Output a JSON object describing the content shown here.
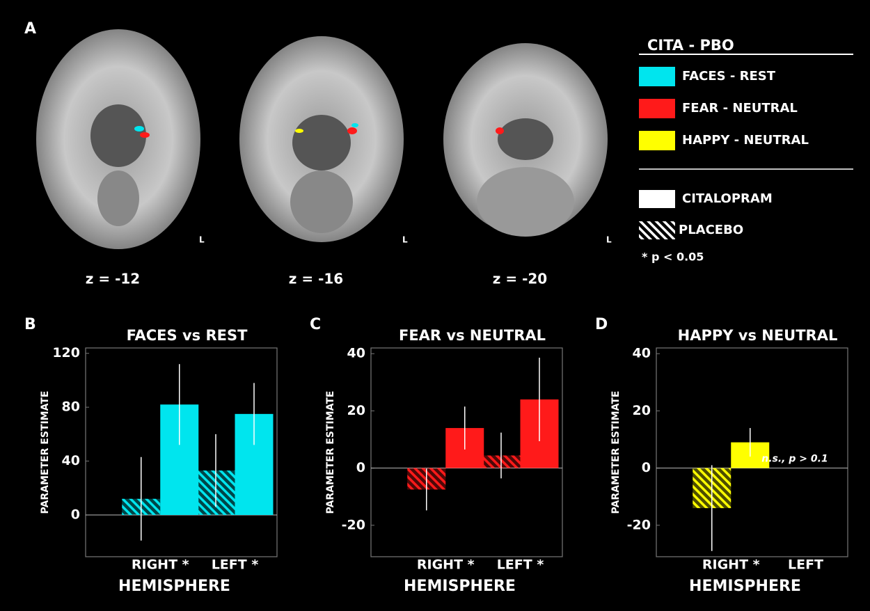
{
  "brain_panel": {
    "panel_label": "A",
    "slices": [
      {
        "z_label": "z = -12",
        "side_label": "L"
      },
      {
        "z_label": "z = -16",
        "side_label": "L"
      },
      {
        "z_label": "z = -20",
        "side_label": "L"
      }
    ]
  },
  "legend": {
    "title": "CITA - PBO",
    "contrasts": [
      {
        "label": "FACES - REST",
        "color": "#00e5ee"
      },
      {
        "label": "FEAR - NEUTRAL",
        "color": "#ff1a1a"
      },
      {
        "label": "HAPPY - NEUTRAL",
        "color": "#ffff00"
      }
    ],
    "conditions": [
      {
        "label": "CITALOPRAM",
        "pattern": "solid"
      },
      {
        "label": "PLACEBO",
        "pattern": "hatched"
      }
    ],
    "note": "* p < 0.05"
  },
  "chart_data": [
    {
      "type": "bar",
      "panel_label": "B",
      "title": "FACES vs REST",
      "x_label": "HEMISPHERE",
      "y_label": "PARAMETER ESTIMATE",
      "categories": [
        "RIGHT *",
        "LEFT *"
      ],
      "series": [
        {
          "pattern": "hatched",
          "color": "#00e5ee",
          "values": [
            12,
            33
          ],
          "errors": [
            31,
            27
          ]
        },
        {
          "pattern": "solid",
          "color": "#00e5ee",
          "values": [
            82,
            75
          ],
          "errors": [
            30,
            23
          ]
        }
      ],
      "ylim": [
        -31,
        124
      ],
      "yticks": [
        0,
        40,
        80,
        120
      ]
    },
    {
      "type": "bar",
      "panel_label": "C",
      "title": "FEAR vs NEUTRAL",
      "x_label": "HEMISPHERE",
      "y_label": "PARAMETER ESTIMATE",
      "categories": [
        "RIGHT *",
        "LEFT *"
      ],
      "series": [
        {
          "pattern": "hatched",
          "color": "#ff1a1a",
          "values": [
            -7.5,
            4.4
          ],
          "errors": [
            7.3,
            8
          ]
        },
        {
          "pattern": "solid",
          "color": "#ff1a1a",
          "values": [
            14,
            24
          ],
          "errors": [
            7.5,
            14.6
          ]
        }
      ],
      "ylim": [
        -31,
        42
      ],
      "yticks": [
        -20,
        0,
        20,
        40
      ]
    },
    {
      "type": "bar",
      "panel_label": "D",
      "title": "HAPPY vs NEUTRAL",
      "x_label": "HEMISPHERE",
      "y_label": "PARAMETER ESTIMATE",
      "categories": [
        "RIGHT *",
        "LEFT"
      ],
      "series": [
        {
          "pattern": "hatched",
          "color": "#ffff00",
          "values": [
            -14,
            null
          ],
          "errors": [
            15,
            null
          ]
        },
        {
          "pattern": "solid",
          "color": "#ffff00",
          "values": [
            9,
            null
          ],
          "errors": [
            5,
            null
          ]
        }
      ],
      "annotation": "n.s., p > 0.1",
      "ylim": [
        -31,
        42
      ],
      "yticks": [
        -20,
        0,
        20,
        40
      ]
    }
  ]
}
